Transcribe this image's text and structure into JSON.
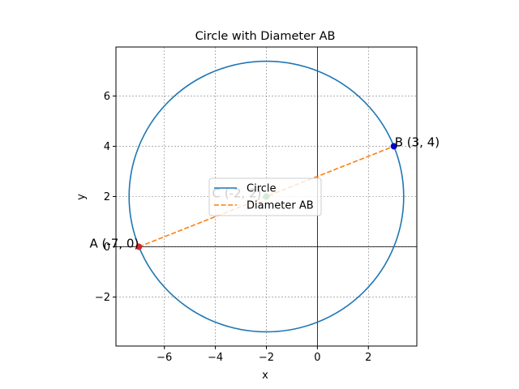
{
  "chart_data": {
    "type": "line",
    "title": "Circle with Diameter AB",
    "xlabel": "x",
    "ylabel": "y",
    "xlim": [
      -7.9,
      3.9
    ],
    "ylim": [
      -3.95,
      7.95
    ],
    "xticks": [
      -6,
      -4,
      -2,
      0,
      2
    ],
    "yticks": [
      -2,
      0,
      2,
      4,
      6
    ],
    "grid": true,
    "legend_position": "center",
    "series": [
      {
        "name": "Circle",
        "kind": "circle",
        "center": [
          -2,
          2
        ],
        "radius": 5.385,
        "color": "#1f77b4",
        "style": "solid"
      },
      {
        "name": "Diameter AB",
        "kind": "segment",
        "x": [
          -7,
          3
        ],
        "y": [
          0,
          4
        ],
        "color": "#ff7f0e",
        "style": "dashed"
      }
    ],
    "points": [
      {
        "label": "A (-7, 0)",
        "x": -7,
        "y": 0,
        "color": "#d62728"
      },
      {
        "label": "B (3, 4)",
        "x": 3,
        "y": 4,
        "color": "#0000cc"
      },
      {
        "label": "C (-2, 2)",
        "x": -2,
        "y": 2,
        "color": "#2ca02c"
      }
    ]
  }
}
